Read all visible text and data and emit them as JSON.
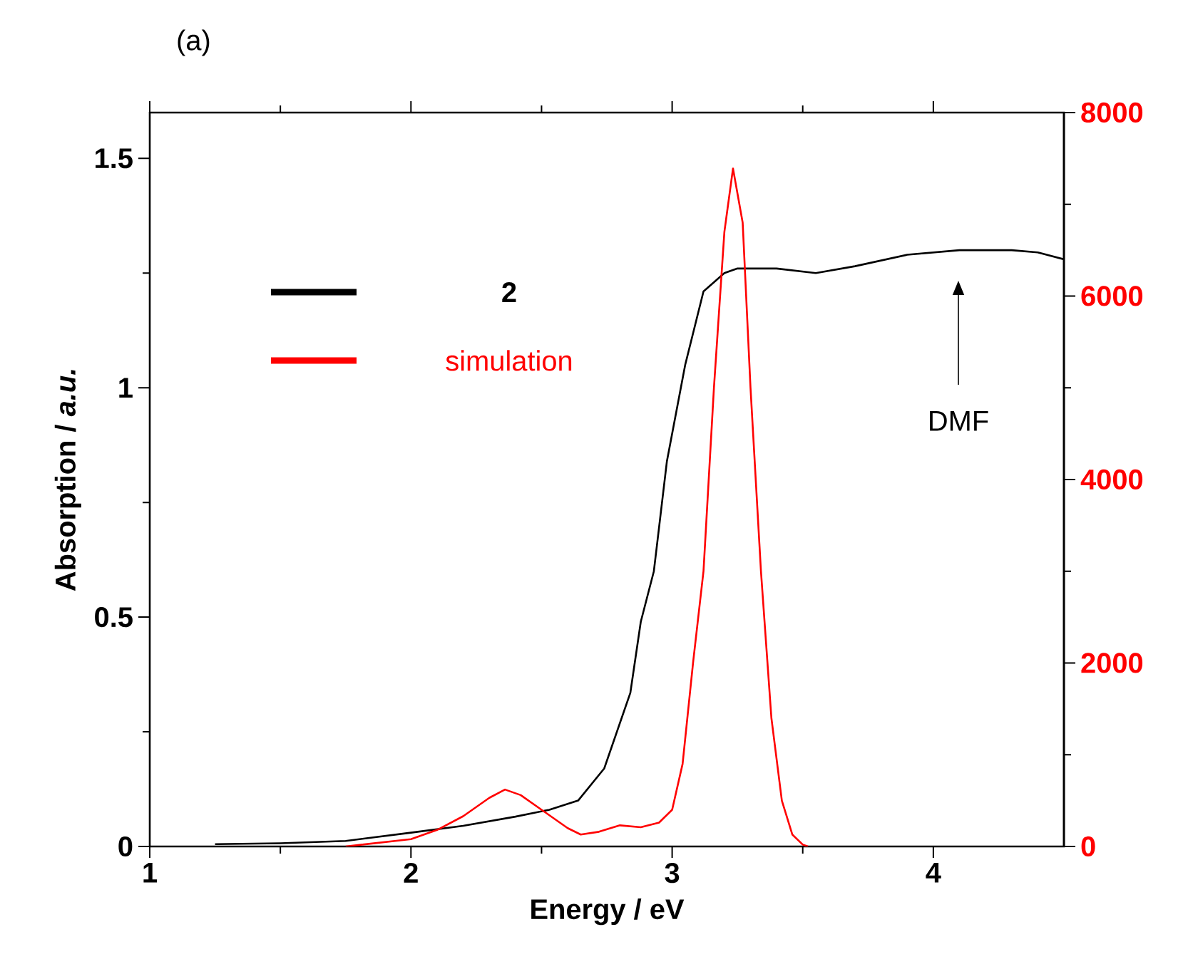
{
  "chart_data": {
    "type": "line",
    "title": "(a)",
    "xlabel": "Energy / eV",
    "ylabel": "Absorption / *a.u.*",
    "xlim": [
      1,
      4.5
    ],
    "xticks": [
      1,
      2,
      3,
      4
    ],
    "ylim": [
      0,
      1.6
    ],
    "yticks": [
      0,
      {
        "value": 0.5,
        "label": "0.5"
      },
      1,
      {
        "value": 1.5,
        "label": "1.5"
      }
    ],
    "y2lim": [
      0,
      8000
    ],
    "y2ticks": [
      0,
      2000,
      4000,
      6000,
      8000
    ],
    "legend": "top left",
    "line_style": "solid",
    "annotations": [
      "DMF"
    ],
    "series": [
      {
        "name": "**2**",
        "color": "#000000",
        "x": [
          1.25,
          1.5,
          1.75,
          2.0,
          2.2,
          2.4,
          2.53,
          2.64,
          2.74,
          2.84,
          2.88,
          2.93,
          2.98,
          3.05,
          3.12,
          3.2,
          3.25,
          3.4,
          3.55,
          3.7,
          3.9,
          4.1,
          4.3,
          4.4,
          4.5
        ],
        "values": [
          0.005,
          0.007,
          0.012,
          0.03,
          0.045,
          0.065,
          0.08,
          0.1,
          0.17,
          0.335,
          0.49,
          0.6,
          0.84,
          1.05,
          1.21,
          1.25,
          1.26,
          1.26,
          1.25,
          1.265,
          1.29,
          1.3,
          1.3,
          1.295,
          1.28
        ]
      },
      {
        "name": "simulation",
        "color": "#ff0000",
        "axis": "y2",
        "x": [
          1.75,
          2.0,
          2.1,
          2.2,
          2.3,
          2.36,
          2.42,
          2.5,
          2.6,
          2.65,
          2.72,
          2.8,
          2.88,
          2.95,
          3.0,
          3.04,
          3.08,
          3.12,
          3.16,
          3.2,
          3.233,
          3.27,
          3.3,
          3.34,
          3.38,
          3.42,
          3.46,
          3.5,
          3.52
        ],
        "values": [
          0,
          80,
          180,
          330,
          530,
          620,
          560,
          400,
          200,
          130,
          160,
          230,
          210,
          260,
          400,
          900,
          2000,
          3000,
          5000,
          6700,
          7390,
          6800,
          5000,
          3000,
          1400,
          500,
          130,
          20,
          0
        ]
      }
    ]
  }
}
